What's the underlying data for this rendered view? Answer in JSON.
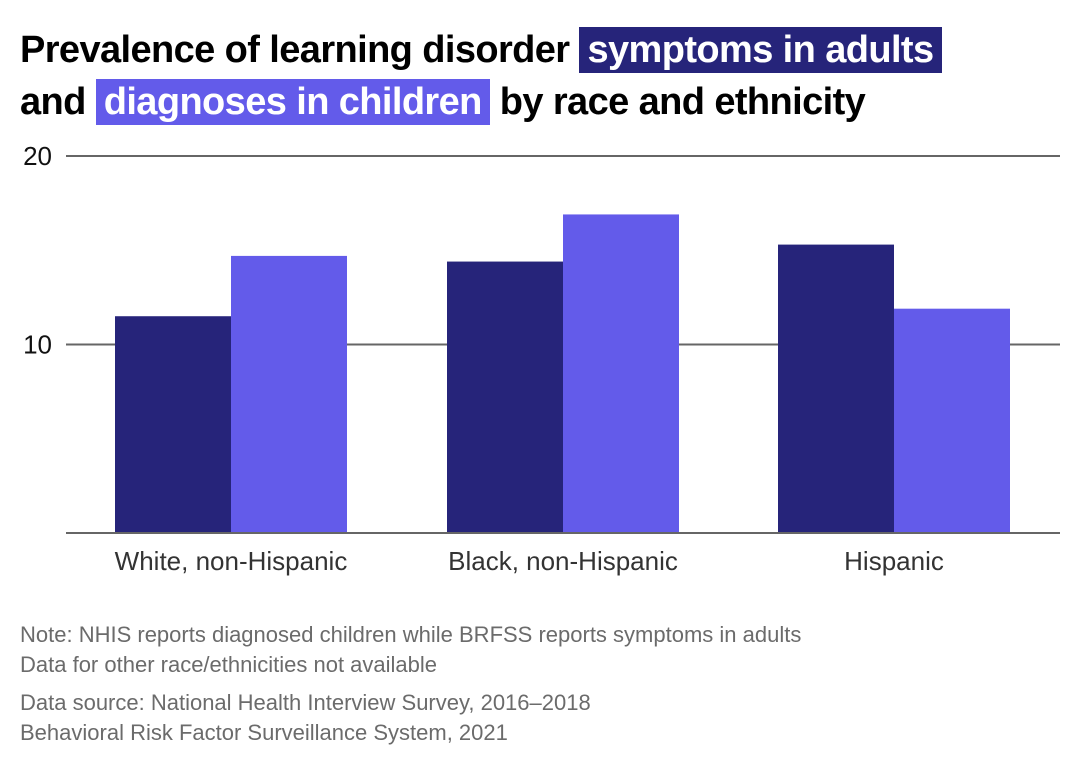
{
  "title": {
    "part1": "Prevalence of learning disorder",
    "highlight_adults": "symptoms in adults",
    "part2": "and",
    "highlight_children": "diagnoses in children",
    "part3": "by race and ethnicity"
  },
  "colors": {
    "adults": "#26247a",
    "children": "#635bea",
    "grid": "#666666"
  },
  "chart_data": {
    "type": "bar",
    "title": "Prevalence of learning disorder symptoms in adults and diagnoses in children by race and ethnicity",
    "categories": [
      "White, non-Hispanic",
      "Black, non-Hispanic",
      "Hispanic"
    ],
    "series": [
      {
        "name": "symptoms in adults",
        "values": [
          11.5,
          14.4,
          15.3
        ]
      },
      {
        "name": "diagnoses in children",
        "values": [
          14.7,
          16.9,
          11.9
        ]
      }
    ],
    "yticks": [
      "20",
      "10"
    ],
    "ytick_values": [
      20,
      10
    ],
    "ylim": [
      0,
      20
    ],
    "xlabel": "",
    "ylabel": "",
    "grid": true,
    "legend": "inline in title"
  },
  "notes": {
    "note1": "Note: NHIS reports diagnosed children while BRFSS reports symptoms in adults",
    "note2": "Data for other race/ethnicities not available",
    "source1": "Data source: National Health Interview Survey, 2016–2018",
    "source2": "Behavioral Risk Factor Surveillance System, 2021"
  }
}
